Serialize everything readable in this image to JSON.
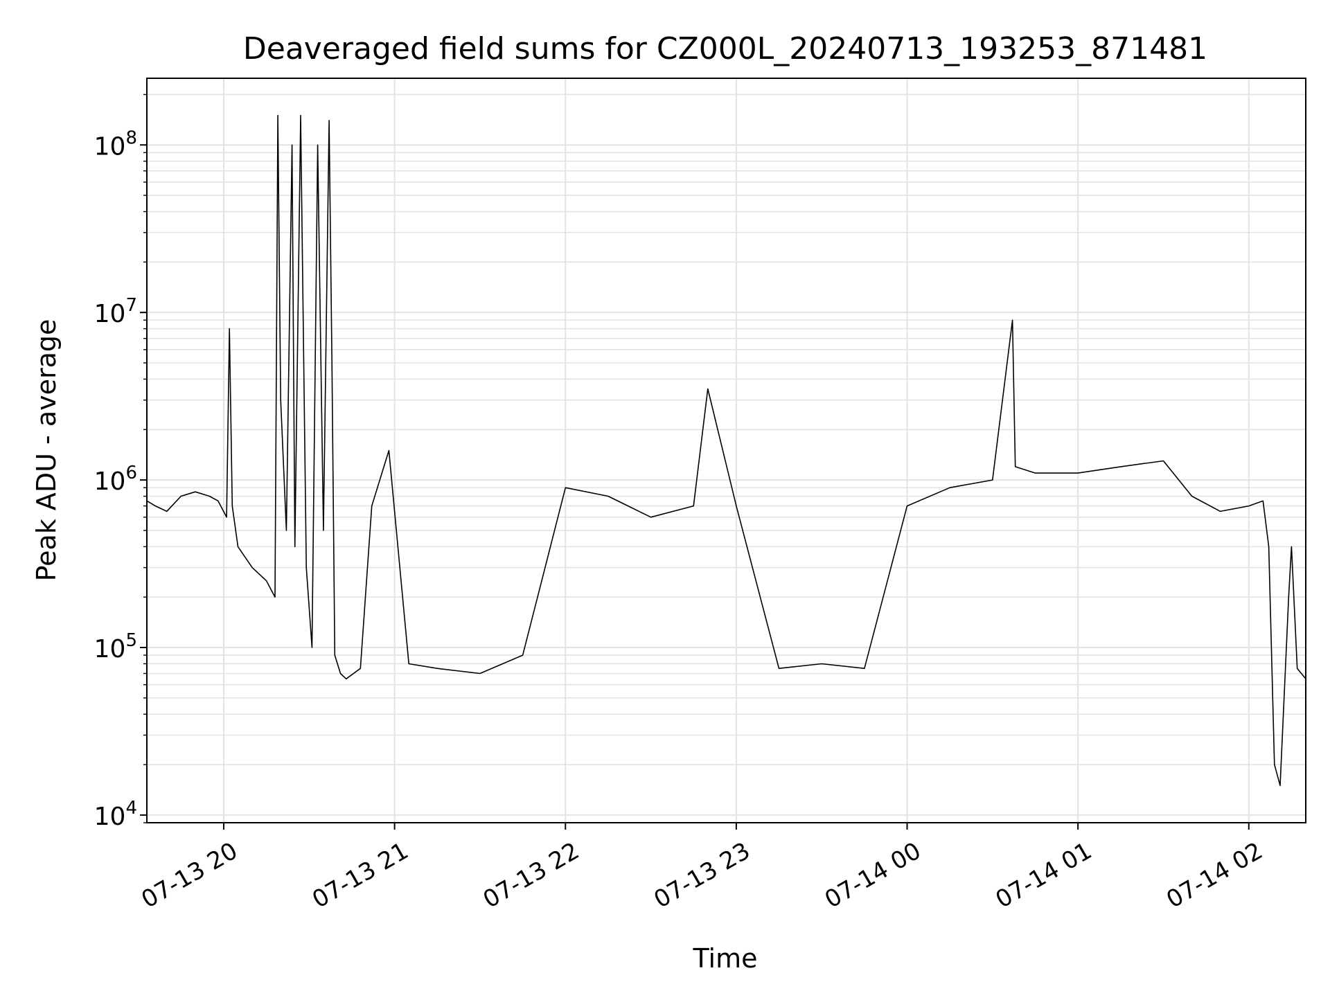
{
  "chart_data": {
    "type": "line",
    "title": "Deaveraged field sums for CZ000L_20240713_193253_871481",
    "xlabel": "Time",
    "ylabel": "Peak ADU - average",
    "yscale": "log",
    "ylim": [
      9000,
      250000000
    ],
    "xlim": [
      "2024-07-13 19:33",
      "2024-07-14 02:20"
    ],
    "grid": true,
    "legend": "none",
    "line_color": "#000000",
    "grid_color": "#e3e3e3",
    "x_ticks": [
      {
        "value": "2024-07-13 20:00",
        "label": "07-13 20"
      },
      {
        "value": "2024-07-13 21:00",
        "label": "07-13 21"
      },
      {
        "value": "2024-07-13 22:00",
        "label": "07-13 22"
      },
      {
        "value": "2024-07-13 23:00",
        "label": "07-13 23"
      },
      {
        "value": "2024-07-14 00:00",
        "label": "07-14 00"
      },
      {
        "value": "2024-07-14 01:00",
        "label": "07-14 01"
      },
      {
        "value": "2024-07-14 02:00",
        "label": "07-14 02"
      }
    ],
    "y_ticks": [
      {
        "value": 10000,
        "base": "10",
        "exp": "4"
      },
      {
        "value": 100000,
        "base": "10",
        "exp": "5"
      },
      {
        "value": 1000000,
        "base": "10",
        "exp": "6"
      },
      {
        "value": 10000000,
        "base": "10",
        "exp": "7"
      },
      {
        "value": 100000000,
        "base": "10",
        "exp": "8"
      }
    ],
    "series": [
      {
        "x": [
          "2024-07-13 19:33",
          "2024-07-13 19:36",
          "2024-07-13 19:40",
          "2024-07-13 19:45",
          "2024-07-13 19:50",
          "2024-07-13 19:55",
          "2024-07-13 19:58",
          "2024-07-13 20:01",
          "2024-07-13 20:02",
          "2024-07-13 20:03",
          "2024-07-13 20:05",
          "2024-07-13 20:10",
          "2024-07-13 20:15",
          "2024-07-13 20:18",
          "2024-07-13 20:19",
          "2024-07-13 20:20",
          "2024-07-13 20:22",
          "2024-07-13 20:24",
          "2024-07-13 20:25",
          "2024-07-13 20:27",
          "2024-07-13 20:29",
          "2024-07-13 20:31",
          "2024-07-13 20:33",
          "2024-07-13 20:35",
          "2024-07-13 20:37",
          "2024-07-13 20:38",
          "2024-07-13 20:39",
          "2024-07-13 20:41",
          "2024-07-13 20:43",
          "2024-07-13 20:48",
          "2024-07-13 20:52",
          "2024-07-13 20:58",
          "2024-07-13 21:05",
          "2024-07-13 21:15",
          "2024-07-13 21:30",
          "2024-07-13 21:45",
          "2024-07-13 22:00",
          "2024-07-13 22:15",
          "2024-07-13 22:30",
          "2024-07-13 22:45",
          "2024-07-13 22:50",
          "2024-07-13 23:00",
          "2024-07-13 23:15",
          "2024-07-13 23:30",
          "2024-07-13 23:45",
          "2024-07-14 00:00",
          "2024-07-14 00:15",
          "2024-07-14 00:30",
          "2024-07-14 00:37",
          "2024-07-14 00:38",
          "2024-07-14 00:45",
          "2024-07-14 01:00",
          "2024-07-14 01:15",
          "2024-07-14 01:30",
          "2024-07-14 01:40",
          "2024-07-14 01:50",
          "2024-07-14 02:00",
          "2024-07-14 02:05",
          "2024-07-14 02:07",
          "2024-07-14 02:09",
          "2024-07-14 02:11",
          "2024-07-14 02:14",
          "2024-07-14 02:15",
          "2024-07-14 02:17",
          "2024-07-14 02:20"
        ],
        "y": [
          750000,
          700000,
          650000,
          800000,
          850000,
          800000,
          750000,
          600000,
          8000000,
          700000,
          400000,
          300000,
          250000,
          200000,
          150000000,
          3000000,
          500000,
          100000000,
          400000,
          150000000,
          300000,
          100000,
          100000000,
          500000,
          140000000,
          5000000,
          90000,
          70000,
          65000,
          75000,
          700000,
          1500000,
          80000,
          75000,
          70000,
          90000,
          900000,
          800000,
          600000,
          700000,
          3500000,
          700000,
          75000,
          80000,
          75000,
          700000,
          900000,
          1000000,
          9000000,
          1200000,
          1100000,
          1100000,
          1200000,
          1300000,
          800000,
          650000,
          700000,
          750000,
          400000,
          20000,
          15000,
          200000,
          400000,
          75000,
          65000
        ]
      }
    ]
  }
}
